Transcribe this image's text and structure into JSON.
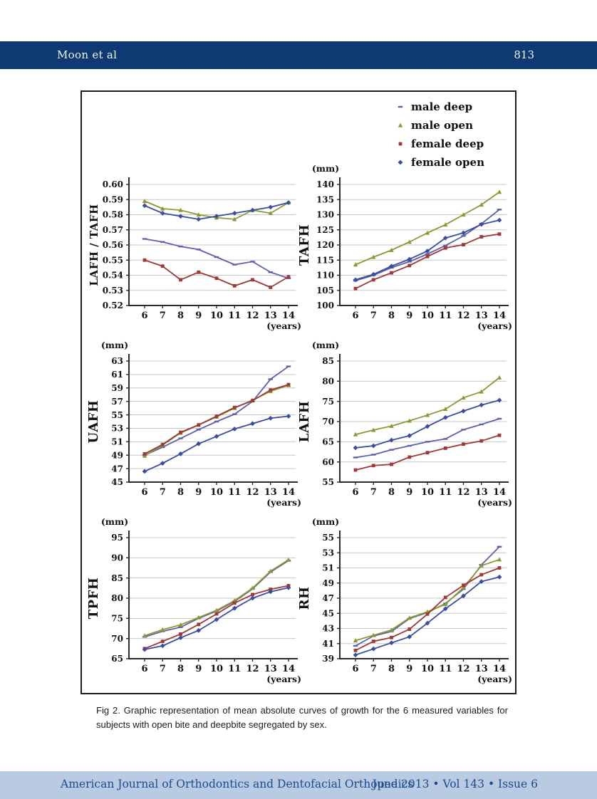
{
  "header": {
    "author": "Moon et al",
    "page_number": "813"
  },
  "legend": {
    "items": [
      {
        "label": "male deep",
        "color": "#5c61ab",
        "marker": "dash"
      },
      {
        "label": "male open",
        "color": "#8a9a33",
        "marker": "triangle"
      },
      {
        "label": "female deep",
        "color": "#9e3937",
        "marker": "square"
      },
      {
        "label": "female open",
        "color": "#3a4d9f",
        "marker": "diamond"
      }
    ]
  },
  "caption": "Fig 2.  Graphic representation of mean absolute curves of growth for the 6 measured variables for subjects with open bite and deepbite segregated by sex.",
  "footer": {
    "journal": "American Journal of Orthodontics and Dentofacial Orthopedics",
    "issue": "June 2013 • Vol 143 • Issue 6"
  },
  "chart_data": [
    {
      "type": "line",
      "ylabel": "LAFH / TAFH",
      "ylabel_size": 15,
      "unit": "",
      "xlabel": "(years)",
      "x": [
        6,
        7,
        8,
        9,
        10,
        11,
        12,
        13,
        14
      ],
      "ylim": [
        0.52,
        0.6
      ],
      "ytick_step": 0.01,
      "ydecimals": 2,
      "grid": true,
      "series": [
        {
          "name": "male deep",
          "values": [
            0.564,
            0.562,
            0.559,
            0.557,
            0.552,
            0.547,
            0.549,
            0.542,
            0.538
          ]
        },
        {
          "name": "male open",
          "values": [
            0.589,
            0.584,
            0.583,
            0.58,
            0.578,
            0.577,
            0.583,
            0.581,
            0.588
          ]
        },
        {
          "name": "female deep",
          "values": [
            0.55,
            0.546,
            0.537,
            0.542,
            0.538,
            0.533,
            0.537,
            0.532,
            0.539
          ]
        },
        {
          "name": "female open",
          "values": [
            0.586,
            0.581,
            0.579,
            0.577,
            0.579,
            0.581,
            0.583,
            0.585,
            0.588
          ]
        }
      ]
    },
    {
      "type": "line",
      "ylabel": "TAFH",
      "ylabel_size": 18,
      "unit": "(mm)",
      "xlabel": "(years)",
      "x": [
        6,
        7,
        8,
        9,
        10,
        11,
        12,
        13,
        14
      ],
      "ylim": [
        100,
        140
      ],
      "ytick_step": 5,
      "ydecimals": 0,
      "grid": true,
      "series": [
        {
          "name": "male deep",
          "values": [
            108.2,
            110.0,
            112.5,
            114.5,
            117.0,
            119.8,
            123.0,
            127.0,
            131.7
          ]
        },
        {
          "name": "male open",
          "values": [
            113.5,
            116.0,
            118.3,
            121.0,
            124.0,
            126.7,
            130.0,
            133.3,
            137.5
          ]
        },
        {
          "name": "female deep",
          "values": [
            105.6,
            108.5,
            110.8,
            113.2,
            116.2,
            119.0,
            120.1,
            122.7,
            123.6
          ]
        },
        {
          "name": "female open",
          "values": [
            108.5,
            110.3,
            113.0,
            115.3,
            118.0,
            122.3,
            124.0,
            126.8,
            128.2
          ]
        }
      ]
    },
    {
      "type": "line",
      "ylabel": "UAFH",
      "ylabel_size": 18,
      "unit": "(mm)",
      "xlabel": "(years)",
      "x": [
        6,
        7,
        8,
        9,
        10,
        11,
        12,
        13,
        14
      ],
      "ylim": [
        45,
        63
      ],
      "ytick_step": 2,
      "ydecimals": 0,
      "grid": true,
      "series": [
        {
          "name": "male deep",
          "values": [
            49.0,
            50.2,
            51.5,
            52.8,
            54.0,
            55.1,
            57.0,
            60.3,
            62.2
          ]
        },
        {
          "name": "male open",
          "values": [
            48.9,
            50.5,
            52.3,
            53.5,
            54.7,
            56.0,
            57.2,
            58.5,
            59.4
          ]
        },
        {
          "name": "female deep",
          "values": [
            49.2,
            50.6,
            52.4,
            53.5,
            54.8,
            56.1,
            57.1,
            58.7,
            59.5
          ]
        },
        {
          "name": "female open",
          "values": [
            46.6,
            47.8,
            49.2,
            50.7,
            51.8,
            52.9,
            53.7,
            54.5,
            54.8
          ]
        }
      ]
    },
    {
      "type": "line",
      "ylabel": "LAFH",
      "ylabel_size": 18,
      "unit": "(mm)",
      "xlabel": "(years)",
      "x": [
        6,
        7,
        8,
        9,
        10,
        11,
        12,
        13,
        14
      ],
      "ylim": [
        55,
        85
      ],
      "ytick_step": 5,
      "ydecimals": 0,
      "grid": true,
      "series": [
        {
          "name": "male deep",
          "values": [
            61.1,
            61.8,
            63.0,
            64.0,
            65.0,
            65.7,
            68.0,
            69.3,
            70.7
          ]
        },
        {
          "name": "male open",
          "values": [
            66.8,
            67.9,
            68.9,
            70.2,
            71.6,
            73.1,
            75.9,
            77.4,
            80.9
          ]
        },
        {
          "name": "female deep",
          "values": [
            58.0,
            59.1,
            59.4,
            61.2,
            62.3,
            63.4,
            64.4,
            65.2,
            66.6
          ]
        },
        {
          "name": "female open",
          "values": [
            63.5,
            64.0,
            65.4,
            66.5,
            68.8,
            71.0,
            72.6,
            74.1,
            75.3
          ]
        }
      ]
    },
    {
      "type": "line",
      "ylabel": "TPFH",
      "ylabel_size": 18,
      "unit": "(mm)",
      "xlabel": "(years)",
      "x": [
        6,
        7,
        8,
        9,
        10,
        11,
        12,
        13,
        14
      ],
      "ylim": [
        65,
        95
      ],
      "ytick_step": 5,
      "ydecimals": 0,
      "grid": true,
      "series": [
        {
          "name": "male deep",
          "values": [
            70.4,
            71.8,
            72.8,
            75.0,
            76.8,
            79.2,
            82.3,
            86.5,
            89.3
          ]
        },
        {
          "name": "male open",
          "values": [
            70.7,
            72.2,
            73.4,
            75.2,
            77.0,
            79.4,
            82.5,
            86.7,
            89.5
          ]
        },
        {
          "name": "female deep",
          "values": [
            67.5,
            69.3,
            71.1,
            73.5,
            76.1,
            78.8,
            80.9,
            82.2,
            83.1
          ]
        },
        {
          "name": "female open",
          "values": [
            67.3,
            68.2,
            70.2,
            72.0,
            74.7,
            77.5,
            80.0,
            81.6,
            82.6
          ]
        }
      ]
    },
    {
      "type": "line",
      "ylabel": "RH",
      "ylabel_size": 18,
      "unit": "(mm)",
      "xlabel": "(years)",
      "x": [
        6,
        7,
        8,
        9,
        10,
        11,
        12,
        13,
        14
      ],
      "ylim": [
        39,
        55
      ],
      "ytick_step": 2,
      "ydecimals": 0,
      "grid": true,
      "series": [
        {
          "name": "male deep",
          "values": [
            40.7,
            42.0,
            42.6,
            44.3,
            45.1,
            46.3,
            48.2,
            51.4,
            53.8
          ]
        },
        {
          "name": "male open",
          "values": [
            41.4,
            42.1,
            42.8,
            44.4,
            45.2,
            46.2,
            48.4,
            51.3,
            52.1
          ]
        },
        {
          "name": "female deep",
          "values": [
            40.1,
            41.3,
            41.8,
            42.9,
            44.9,
            47.1,
            48.7,
            50.1,
            51.0
          ]
        },
        {
          "name": "female open",
          "values": [
            39.5,
            40.3,
            41.1,
            41.9,
            43.7,
            45.6,
            47.3,
            49.2,
            49.8
          ]
        }
      ]
    }
  ]
}
